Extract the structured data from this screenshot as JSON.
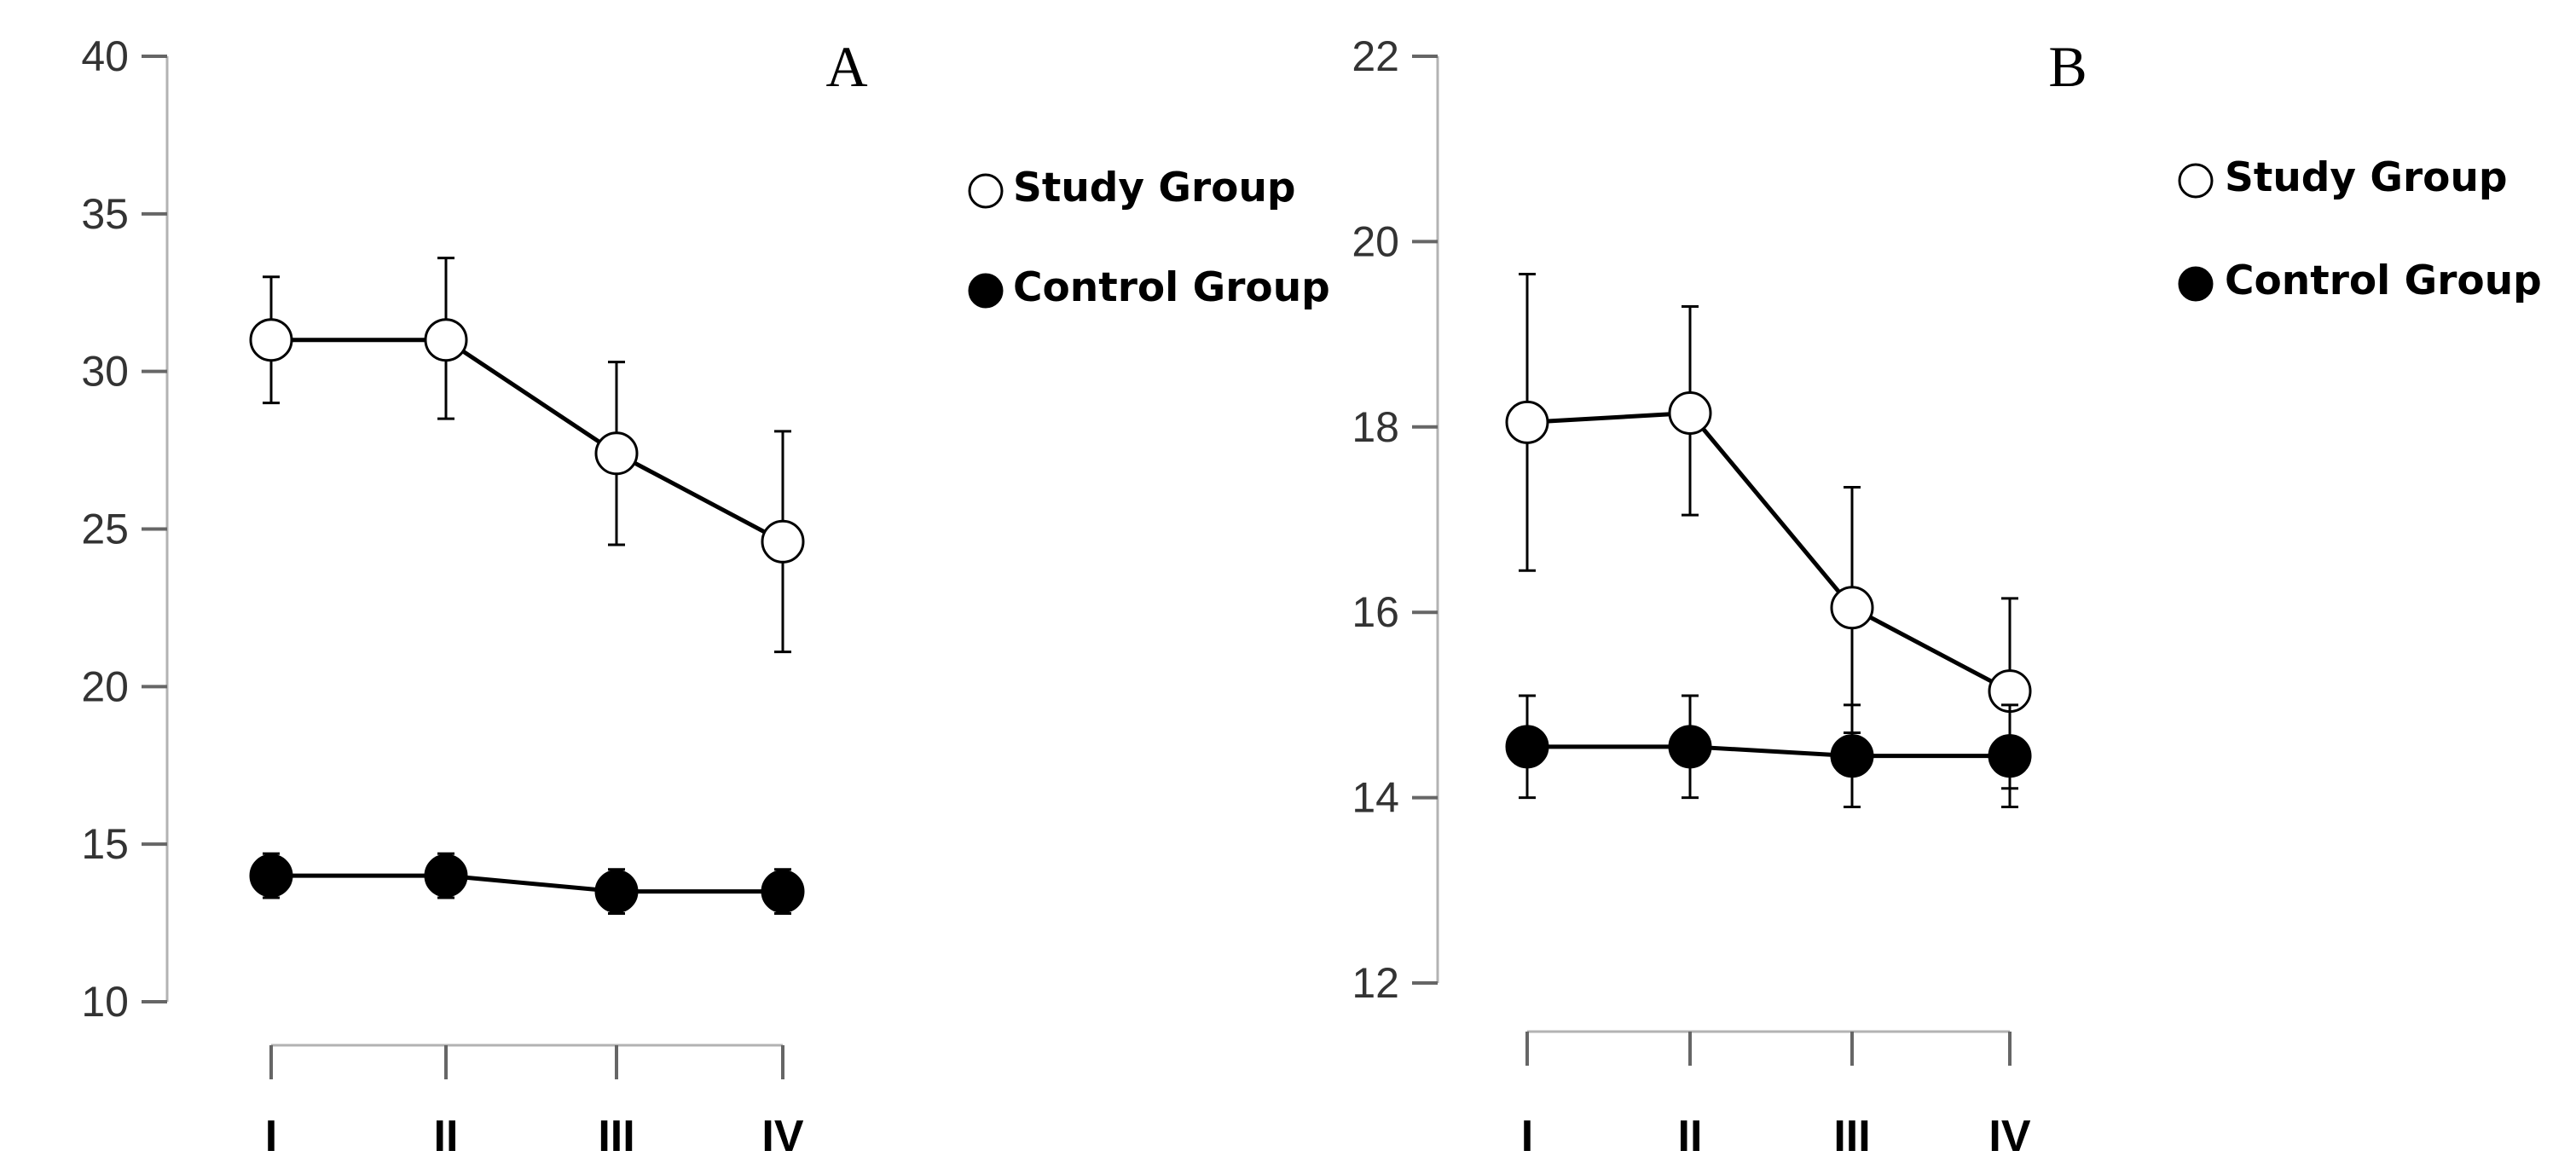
{
  "chart_data": [
    {
      "type": "line",
      "panel_label": "A",
      "categories": [
        "I",
        "II",
        "III",
        "IV"
      ],
      "ylim": [
        10,
        40
      ],
      "yticks": [
        10,
        15,
        20,
        25,
        30,
        35,
        40
      ],
      "xlabel": "",
      "ylabel": "",
      "grid": false,
      "legend_position": "top-right",
      "series": [
        {
          "name": "Study Group",
          "marker": "open-circle",
          "values": [
            31.0,
            31.0,
            27.4,
            24.6
          ],
          "error_low": [
            29.0,
            28.5,
            24.5,
            21.1
          ],
          "error_high": [
            33.0,
            33.6,
            30.3,
            28.1
          ]
        },
        {
          "name": "Control Group",
          "marker": "filled-circle",
          "values": [
            14.0,
            14.0,
            13.5,
            13.5
          ],
          "error_low": [
            13.3,
            13.3,
            12.8,
            12.8
          ],
          "error_high": [
            14.7,
            14.7,
            14.2,
            14.2
          ]
        }
      ]
    },
    {
      "type": "line",
      "panel_label": "B",
      "categories": [
        "I",
        "II",
        "III",
        "IV"
      ],
      "ylim": [
        12,
        22
      ],
      "yticks": [
        12,
        14,
        16,
        18,
        20,
        22
      ],
      "xlabel": "",
      "ylabel": "",
      "grid": false,
      "legend_position": "top-right",
      "series": [
        {
          "name": "Study Group",
          "marker": "open-circle",
          "values": [
            18.05,
            18.15,
            16.05,
            15.15
          ],
          "error_low": [
            16.45,
            17.05,
            14.7,
            14.1
          ],
          "error_high": [
            19.65,
            19.3,
            17.35,
            16.15
          ]
        },
        {
          "name": "Control Group",
          "marker": "filled-circle",
          "values": [
            14.55,
            14.55,
            14.45,
            14.45
          ],
          "error_low": [
            14.0,
            14.0,
            13.9,
            13.9
          ],
          "error_high": [
            15.1,
            15.1,
            15.0,
            15.0
          ]
        }
      ]
    }
  ]
}
